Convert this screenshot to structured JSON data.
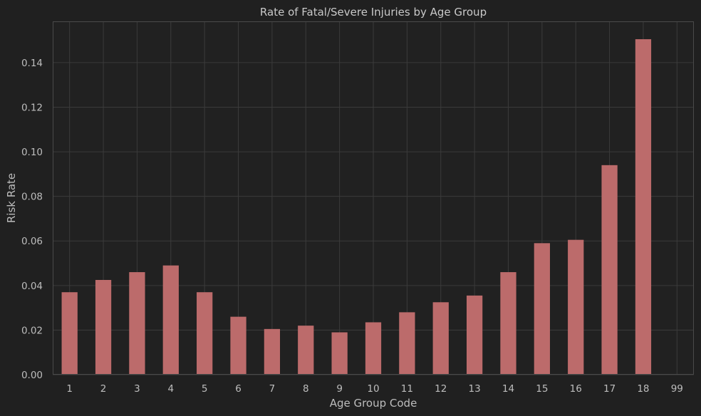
{
  "chart_data": {
    "type": "bar",
    "title": "Rate of Fatal/Severe Injuries by Age Group",
    "xlabel": "Age Group Code",
    "ylabel": "Risk Rate",
    "categories": [
      "1",
      "2",
      "3",
      "4",
      "5",
      "6",
      "7",
      "8",
      "9",
      "10",
      "11",
      "12",
      "13",
      "14",
      "15",
      "16",
      "17",
      "18",
      "99"
    ],
    "values": [
      0.037,
      0.0425,
      0.046,
      0.049,
      0.037,
      0.026,
      0.0205,
      0.022,
      0.019,
      0.0235,
      0.028,
      0.0325,
      0.0355,
      0.046,
      0.059,
      0.0605,
      0.094,
      0.1505,
      0.0
    ],
    "ylim": [
      0,
      0.1585
    ],
    "yticks": [
      0.0,
      0.02,
      0.04,
      0.06,
      0.08,
      0.1,
      0.12,
      0.14
    ],
    "ytick_labels": [
      "0.00",
      "0.02",
      "0.04",
      "0.06",
      "0.08",
      "0.10",
      "0.12",
      "0.14"
    ],
    "grid": true,
    "legend": "none",
    "colors": {
      "background": "#202020",
      "plot_background": "#212121",
      "bar": "#bc6b6b",
      "grid": "#3b3b3b",
      "spine": "#4a4a4a",
      "text": "#bdbdbd"
    }
  }
}
